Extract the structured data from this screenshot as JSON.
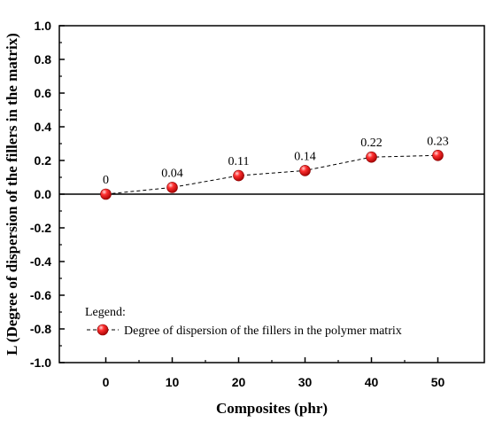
{
  "chart_data": {
    "type": "line",
    "title": "",
    "xlabel": "Composites (phr)",
    "ylabel": "L (Degree of dispersion of the fillers in the matrix)",
    "xlim": [
      -7,
      57
    ],
    "ylim": [
      -1.0,
      1.0
    ],
    "x_ticks": [
      "0",
      "10",
      "20",
      "30",
      "40",
      "50"
    ],
    "y_ticks": [
      "-1.0",
      "-0.8",
      "-0.6",
      "-0.4",
      "-0.2",
      "0.0",
      "0.2",
      "0.4",
      "0.6",
      "0.8",
      "1.0"
    ],
    "series": [
      {
        "name": "Degree of dispersion of the fillers in the polymer matrix",
        "x": [
          0,
          10,
          20,
          30,
          40,
          50
        ],
        "y": [
          0,
          0.04,
          0.11,
          0.14,
          0.22,
          0.23
        ],
        "labels": [
          "0",
          "0.04",
          "0.11",
          "0.14",
          "0.22",
          "0.23"
        ],
        "line_style": "dashed",
        "marker": "red-sphere"
      }
    ],
    "zero_line": true,
    "grid": false,
    "legend": {
      "title": "Legend:",
      "placement": "bottom-left"
    },
    "colors": {
      "marker": "#e41e1e",
      "line": "#000000"
    }
  }
}
